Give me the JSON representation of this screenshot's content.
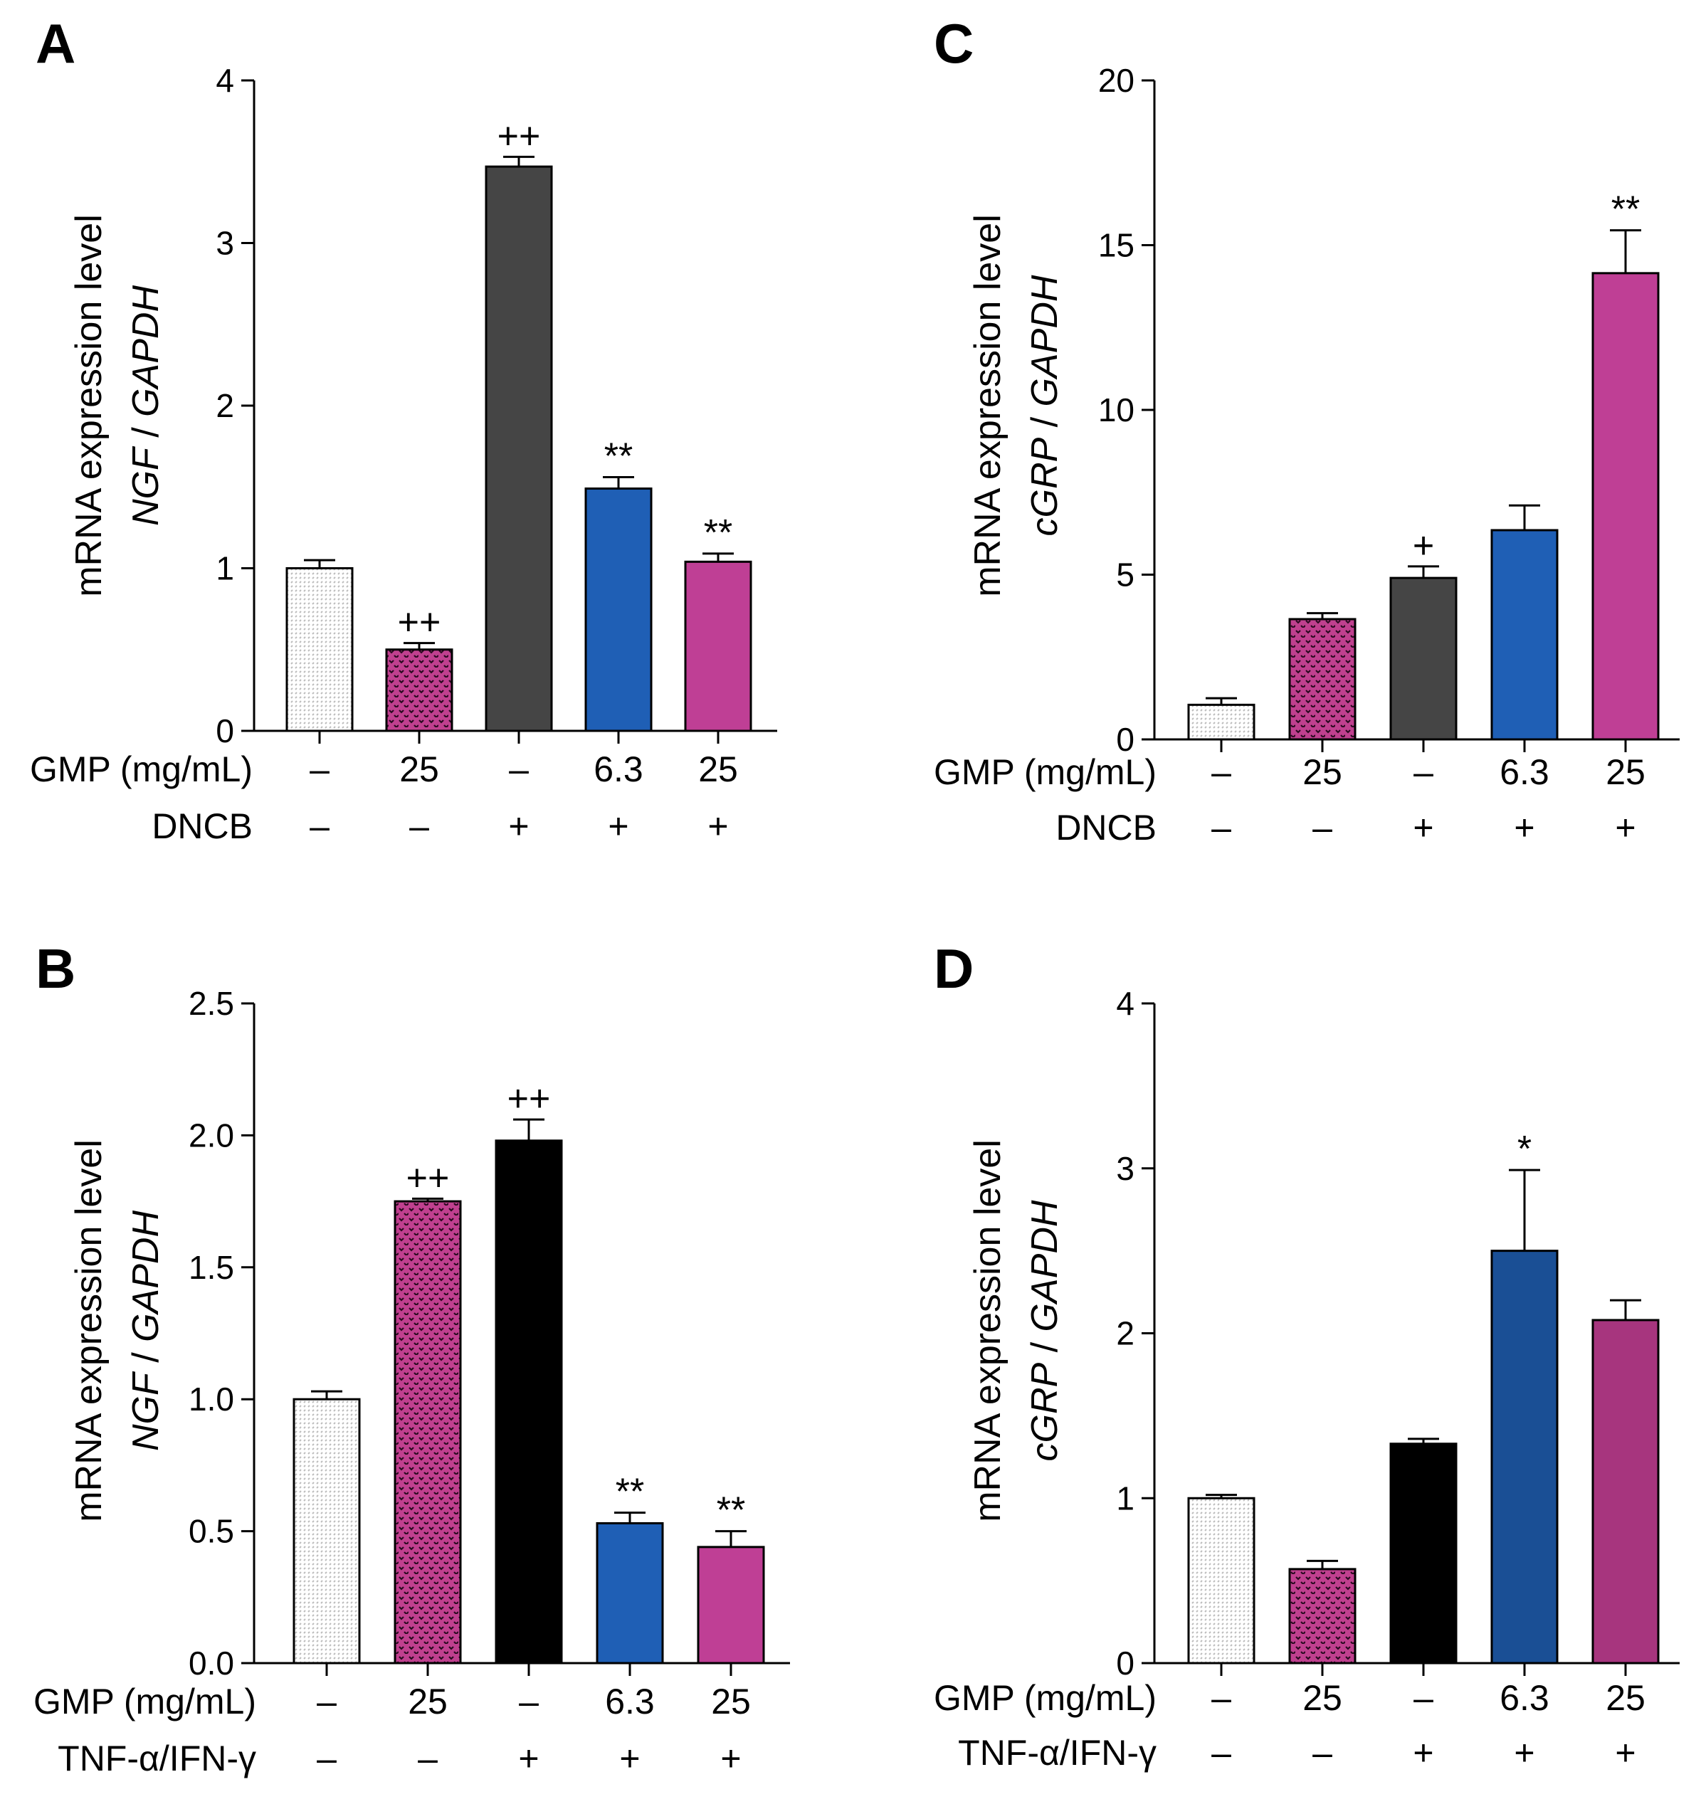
{
  "patterns": {
    "control": "#bcbcbc",
    "gmp": "#2a0a20"
  },
  "chart_data": [
    {
      "id": "A",
      "type": "bar",
      "panel_label": "A",
      "ylabel_line1": "mRNA expression level",
      "ylabel_line2_gene": "NGF",
      "ylabel_line2_sep": " / ",
      "ylabel_line2_ref": "GAPDH",
      "ylim": [
        0,
        4
      ],
      "yticks": [
        0,
        1,
        2,
        3,
        4
      ],
      "ytick_labels": [
        "0",
        "1",
        "2",
        "3",
        "4"
      ],
      "conditions": [
        {
          "label": "GMP (mg/mL)",
          "values": [
            "–",
            "25",
            "–",
            "6.3",
            "25"
          ]
        },
        {
          "label": "DNCB",
          "values": [
            "–",
            "–",
            "+",
            "+",
            "+"
          ]
        }
      ],
      "bars": [
        {
          "value": 1.0,
          "error": 0.05,
          "color": "#ffffff",
          "pattern": "control",
          "sig": ""
        },
        {
          "value": 0.5,
          "error": 0.04,
          "color": "#c0408f",
          "pattern": "gmp",
          "sig": "++"
        },
        {
          "value": 3.47,
          "error": 0.06,
          "color": "#454545",
          "pattern": "",
          "sig": "++"
        },
        {
          "value": 1.49,
          "error": 0.07,
          "color": "#1f5fb5",
          "pattern": "",
          "sig": "**"
        },
        {
          "value": 1.04,
          "error": 0.05,
          "color": "#bf3f95",
          "pattern": "",
          "sig": "**"
        }
      ]
    },
    {
      "id": "B",
      "type": "bar",
      "panel_label": "B",
      "ylabel_line1": "mRNA  expression level",
      "ylabel_line2_gene": "NGF",
      "ylabel_line2_sep": " / ",
      "ylabel_line2_ref": "GAPDH",
      "ylim": [
        0,
        2.5
      ],
      "yticks": [
        0,
        0.5,
        1.0,
        1.5,
        2.0,
        2.5
      ],
      "ytick_labels": [
        "0.0",
        "0.5",
        "1.0",
        "1.5",
        "2.0",
        "2.5"
      ],
      "conditions": [
        {
          "label": "GMP (mg/mL)",
          "values": [
            "–",
            "25",
            "–",
            "6.3",
            "25"
          ]
        },
        {
          "label": "TNF-α/IFN-γ",
          "values": [
            "–",
            "–",
            "+",
            "+",
            "+"
          ]
        }
      ],
      "bars": [
        {
          "value": 1.0,
          "error": 0.03,
          "color": "#ffffff",
          "pattern": "control",
          "sig": ""
        },
        {
          "value": 1.75,
          "error": 0.01,
          "color": "#c0408f",
          "pattern": "gmp",
          "sig": "++"
        },
        {
          "value": 1.98,
          "error": 0.08,
          "color": "#000000",
          "pattern": "",
          "sig": "++"
        },
        {
          "value": 0.53,
          "error": 0.04,
          "color": "#1f5fb5",
          "pattern": "",
          "sig": "**"
        },
        {
          "value": 0.44,
          "error": 0.06,
          "color": "#bf3f95",
          "pattern": "",
          "sig": "**"
        }
      ]
    },
    {
      "id": "C",
      "type": "bar",
      "panel_label": "C",
      "ylabel_line1": "mRNA expression level",
      "ylabel_line2_gene": "cGRP",
      "ylabel_line2_sep": " / ",
      "ylabel_line2_ref": "GAPDH",
      "ylim": [
        0,
        20
      ],
      "yticks": [
        0,
        5,
        10,
        15,
        20
      ],
      "ytick_labels": [
        "0",
        "5",
        "10",
        "15",
        "20"
      ],
      "conditions": [
        {
          "label": "GMP (mg/mL)",
          "values": [
            "–",
            "25",
            "–",
            "6.3",
            "25"
          ]
        },
        {
          "label": "DNCB",
          "values": [
            "–",
            "–",
            "+",
            "+",
            "+"
          ]
        }
      ],
      "bars": [
        {
          "value": 1.05,
          "error": 0.2,
          "color": "#ffffff",
          "pattern": "control",
          "sig": ""
        },
        {
          "value": 3.65,
          "error": 0.18,
          "color": "#c0408f",
          "pattern": "gmp",
          "sig": ""
        },
        {
          "value": 4.9,
          "error": 0.35,
          "color": "#454545",
          "pattern": "",
          "sig": "+"
        },
        {
          "value": 6.35,
          "error": 0.75,
          "color": "#1f5fb5",
          "pattern": "",
          "sig": ""
        },
        {
          "value": 14.15,
          "error": 1.3,
          "color": "#bf3f95",
          "pattern": "",
          "sig": "**"
        }
      ]
    },
    {
      "id": "D",
      "type": "bar",
      "panel_label": "D",
      "ylabel_line1": "mRNA  expression level",
      "ylabel_line2_gene": "cGRP",
      "ylabel_line2_sep": " / ",
      "ylabel_line2_ref": "GAPDH",
      "ylim": [
        0,
        4
      ],
      "yticks": [
        0,
        1,
        2,
        3,
        4
      ],
      "ytick_labels": [
        "0",
        "1",
        "2",
        "3",
        "4"
      ],
      "conditions": [
        {
          "label": "GMP (mg/mL)",
          "values": [
            "–",
            "25",
            "–",
            "6.3",
            "25"
          ]
        },
        {
          "label": "TNF-α/IFN-γ",
          "values": [
            "–",
            "–",
            "+",
            "+",
            "+"
          ]
        }
      ],
      "bars": [
        {
          "value": 1.0,
          "error": 0.02,
          "color": "#ffffff",
          "pattern": "control",
          "sig": ""
        },
        {
          "value": 0.57,
          "error": 0.05,
          "color": "#c0408f",
          "pattern": "gmp",
          "sig": ""
        },
        {
          "value": 1.33,
          "error": 0.03,
          "color": "#000000",
          "pattern": "",
          "sig": ""
        },
        {
          "value": 2.5,
          "error": 0.49,
          "color": "#1a4f95",
          "pattern": "",
          "sig": "*"
        },
        {
          "value": 2.08,
          "error": 0.12,
          "color": "#a7357e",
          "pattern": "",
          "sig": ""
        }
      ]
    }
  ]
}
